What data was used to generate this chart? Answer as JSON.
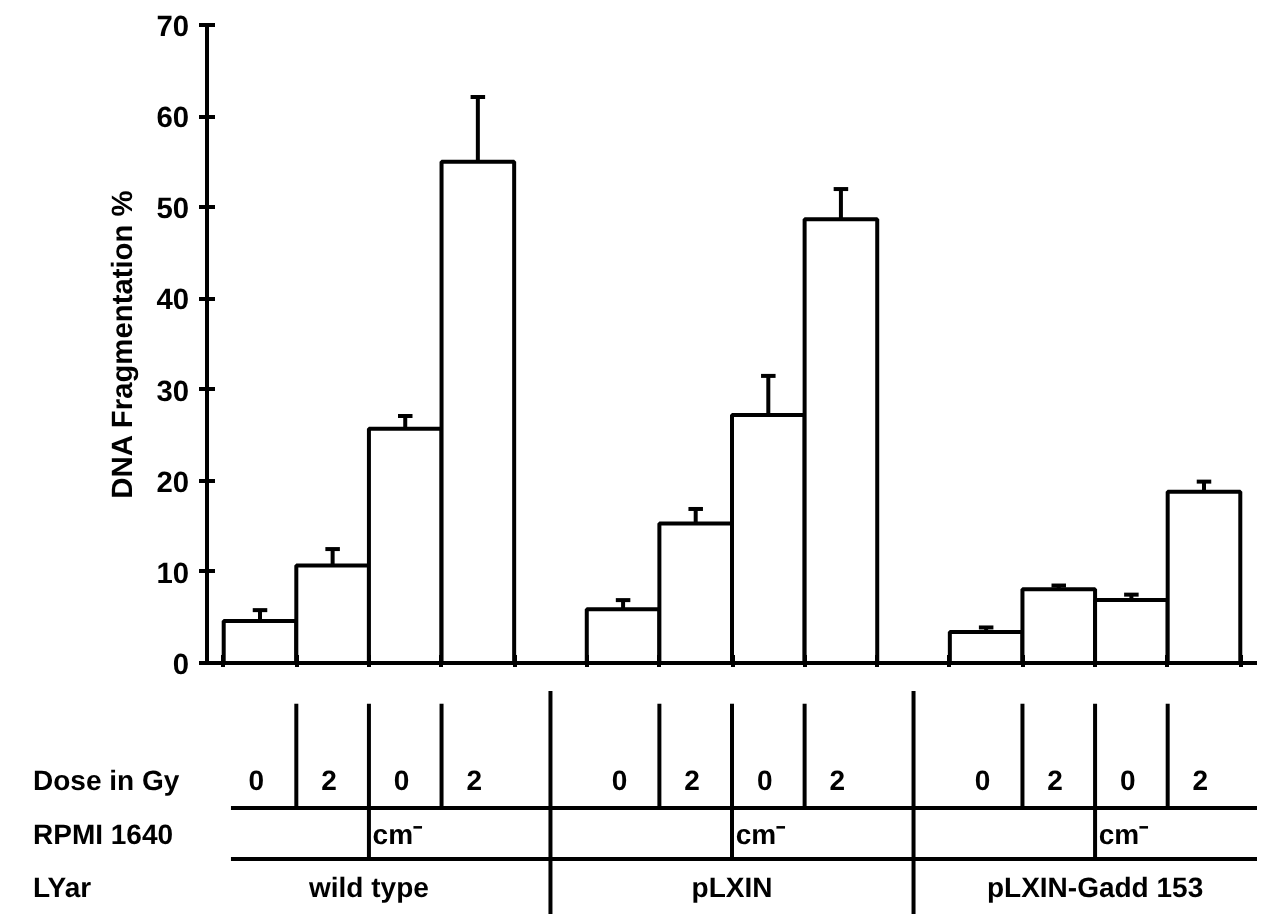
{
  "chart_data": {
    "type": "bar",
    "ylabel": "DNA Fragmentation %",
    "xlabel": "Dose in Gy",
    "categories": [
      "0",
      "2",
      "0",
      "2",
      null,
      "0",
      "2",
      "0",
      "2",
      null,
      "0",
      "2",
      "0",
      "2"
    ],
    "values": [
      4.6,
      10.7,
      25.7,
      55.0,
      null,
      5.9,
      15.3,
      27.2,
      48.7,
      null,
      3.4,
      8.1,
      6.9,
      18.8
    ],
    "errors": [
      [
        4.6,
        5.8
      ],
      [
        10.7,
        12.5
      ],
      [
        25.7,
        27.1
      ],
      [
        55.0,
        62.1
      ],
      null,
      [
        5.9,
        6.9
      ],
      [
        15.3,
        16.9
      ],
      [
        27.2,
        31.5
      ],
      [
        48.7,
        52.0
      ],
      null,
      [
        3.4,
        3.9
      ],
      [
        8.1,
        8.5
      ],
      [
        6.9,
        7.5
      ],
      [
        18.8,
        19.9
      ]
    ],
    "color": "#ffffff",
    "ylim": [
      0,
      70
    ],
    "yticks": [
      0,
      10,
      20,
      30,
      40,
      50,
      60,
      70
    ],
    "tick_labels": "y",
    "grid": false,
    "legend": false,
    "annotations": [
      "RPMI 1640",
      "LYar",
      "cm⁻",
      "cm⁻",
      "cm⁻",
      "wild type",
      "pLXIN",
      "pLXIN-Gadd 153"
    ]
  }
}
